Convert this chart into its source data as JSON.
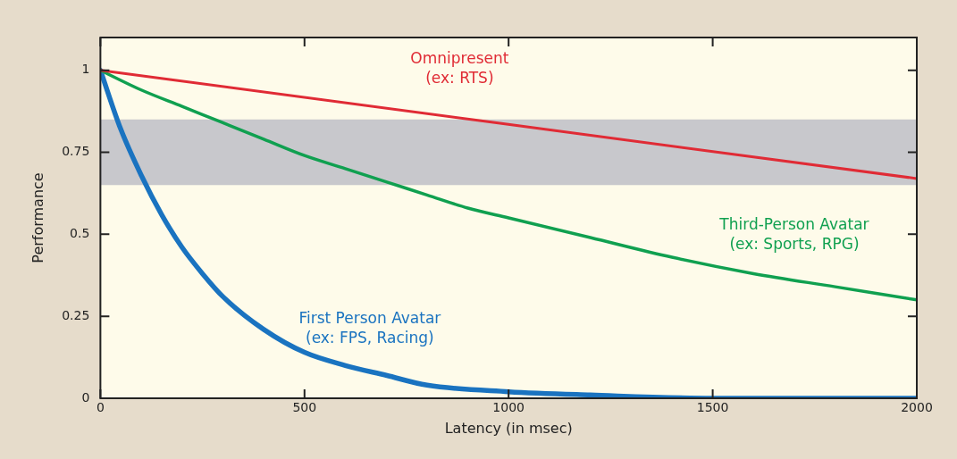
{
  "chart_data": {
    "type": "line",
    "xlabel": "Latency (in msec)",
    "ylabel": "Performance",
    "xlim": [
      0,
      2000
    ],
    "xticks": [
      0,
      500,
      1000,
      1500,
      2000
    ],
    "ylim": [
      0,
      1.1
    ],
    "yticks": [
      0,
      0.25,
      0.5,
      0.75,
      1
    ],
    "grid": false,
    "legend": false,
    "marker": "none",
    "line_style": "solid",
    "bands": [
      {
        "axis": "y",
        "from": 0.65,
        "to": 0.85,
        "color": "#c8c8cc"
      }
    ],
    "series": [
      {
        "name": "Omnipresent (ex: RTS)",
        "color": "#e02b35",
        "x": [
          0,
          2000
        ],
        "values": [
          1,
          0.67
        ]
      },
      {
        "name": "Third-Person Avatar (ex: Sports, RPG)",
        "color": "#10a050",
        "x": [
          0,
          100,
          200,
          300,
          400,
          500,
          600,
          700,
          800,
          900,
          1000,
          1200,
          1400,
          1600,
          1800,
          2000
        ],
        "values": [
          1,
          0.94,
          0.89,
          0.84,
          0.79,
          0.74,
          0.7,
          0.66,
          0.62,
          0.58,
          0.55,
          0.49,
          0.43,
          0.38,
          0.34,
          0.3
        ]
      },
      {
        "name": "First Person Avatar (ex: FPS, Racing)",
        "color": "#1a73c0",
        "x": [
          0,
          50,
          100,
          150,
          200,
          250,
          300,
          400,
          500,
          600,
          700,
          800,
          1000,
          1200,
          1500,
          2000
        ],
        "values": [
          1,
          0.82,
          0.68,
          0.56,
          0.46,
          0.38,
          0.31,
          0.21,
          0.14,
          0.1,
          0.07,
          0.04,
          0.02,
          0.01,
          0,
          0
        ]
      }
    ]
  }
}
